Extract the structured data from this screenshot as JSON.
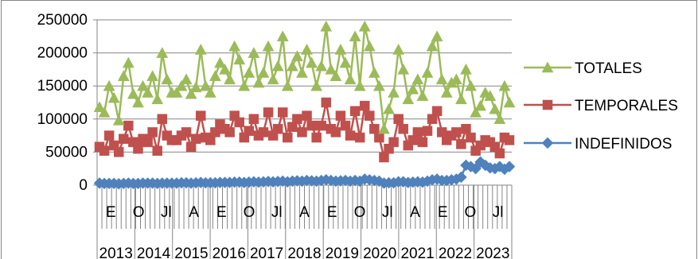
{
  "chart_data": {
    "type": "line",
    "ylim": [
      0,
      250000
    ],
    "y_ticks": [
      "250000",
      "200000",
      "150000",
      "100000",
      "50000",
      "0"
    ],
    "grid": "horizontal",
    "legend_position": "right",
    "x_month_labels": [
      "E",
      "O",
      "Jl",
      "A",
      "E",
      "O",
      "Jl",
      "A",
      "E",
      "O",
      "Jl",
      "A",
      "E",
      "O",
      "Jl"
    ],
    "x_year_labels": [
      "2013",
      "2014",
      "2015",
      "2016",
      "2017",
      "2018",
      "2019",
      "2020",
      "2021",
      "2022",
      "2023"
    ],
    "series": [
      {
        "name": "TOTALES",
        "color": "#9BBB59",
        "marker": "triangle",
        "values": [
          118000,
          110000,
          150000,
          132000,
          98000,
          165000,
          185000,
          138000,
          125000,
          150000,
          140000,
          165000,
          130000,
          200000,
          160000,
          140000,
          140000,
          150000,
          160000,
          138000,
          148000,
          205000,
          150000,
          140000,
          165000,
          185000,
          175000,
          160000,
          210000,
          190000,
          150000,
          170000,
          200000,
          155000,
          170000,
          210000,
          160000,
          180000,
          225000,
          150000,
          180000,
          195000,
          170000,
          205000,
          185000,
          150000,
          180000,
          240000,
          175000,
          165000,
          205000,
          185000,
          160000,
          225000,
          150000,
          240000,
          210000,
          170000,
          150000,
          85000,
          115000,
          140000,
          205000,
          175000,
          130000,
          145000,
          160000,
          135000,
          170000,
          210000,
          225000,
          160000,
          140000,
          155000,
          160000,
          130000,
          175000,
          150000,
          110000,
          120000,
          140000,
          135000,
          115000,
          100000,
          150000,
          125000
        ]
      },
      {
        "name": "TEMPORALES",
        "color": "#C0504D",
        "marker": "square",
        "values": [
          58000,
          52000,
          75000,
          60000,
          50000,
          70000,
          90000,
          65000,
          55000,
          70000,
          65000,
          80000,
          52000,
          100000,
          75000,
          68000,
          68000,
          75000,
          80000,
          58000,
          70000,
          105000,
          72000,
          68000,
          80000,
          92000,
          85000,
          80000,
          105000,
          95000,
          72000,
          82000,
          100000,
          75000,
          80000,
          110000,
          75000,
          85000,
          110000,
          72000,
          88000,
          100000,
          80000,
          105000,
          90000,
          72000,
          90000,
          125000,
          85000,
          80000,
          105000,
          90000,
          75000,
          112000,
          72000,
          120000,
          105000,
          85000,
          72000,
          42000,
          55000,
          65000,
          100000,
          85000,
          60000,
          68000,
          80000,
          65000,
          82000,
          100000,
          112000,
          80000,
          68000,
          75000,
          80000,
          62000,
          85000,
          72000,
          52000,
          60000,
          68000,
          65000,
          58000,
          48000,
          72000,
          68000
        ]
      },
      {
        "name": "INDEFINIDOS",
        "color": "#4F81BD",
        "marker": "diamond",
        "values": [
          3000,
          2500,
          2500,
          2500,
          2000,
          2500,
          3000,
          2500,
          2500,
          3000,
          3000,
          3000,
          2500,
          3000,
          3000,
          3000,
          3000,
          3500,
          3500,
          3000,
          3500,
          4000,
          3500,
          3500,
          3500,
          4000,
          4000,
          4000,
          4500,
          4500,
          4000,
          4500,
          5000,
          4500,
          5000,
          5500,
          5000,
          5500,
          6000,
          5000,
          6000,
          6500,
          6000,
          7000,
          6500,
          6000,
          7000,
          8000,
          7000,
          6000,
          6500,
          7000,
          6000,
          7000,
          6000,
          9000,
          8000,
          7000,
          6000,
          3000,
          3500,
          3500,
          5000,
          5000,
          4000,
          4500,
          5000,
          4500,
          6000,
          8000,
          9000,
          7000,
          7000,
          8000,
          9000,
          12000,
          30000,
          28000,
          25000,
          35000,
          30000,
          26000,
          25000,
          28000,
          24000,
          28000
        ]
      }
    ]
  }
}
